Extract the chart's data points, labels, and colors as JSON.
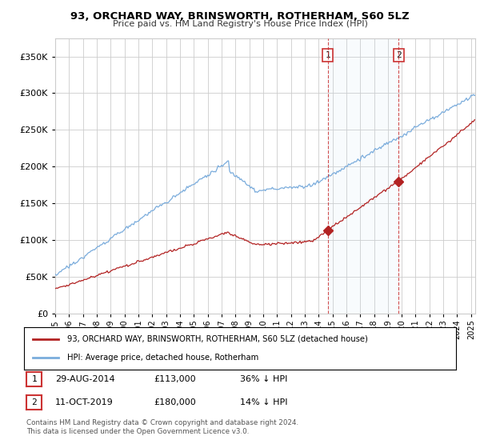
{
  "title": "93, ORCHARD WAY, BRINSWORTH, ROTHERHAM, S60 5LZ",
  "subtitle": "Price paid vs. HM Land Registry's House Price Index (HPI)",
  "legend_line1": "93, ORCHARD WAY, BRINSWORTH, ROTHERHAM, S60 5LZ (detached house)",
  "legend_line2": "HPI: Average price, detached house, Rotherham",
  "annotation1": {
    "label": "1",
    "date": "29-AUG-2014",
    "price": "£113,000",
    "pct": "36% ↓ HPI",
    "x_year": 2014.66,
    "y_val": 113000
  },
  "annotation2": {
    "label": "2",
    "date": "11-OCT-2019",
    "price": "£180,000",
    "pct": "14% ↓ HPI",
    "x_year": 2019.78,
    "y_val": 180000
  },
  "footer1": "Contains HM Land Registry data © Crown copyright and database right 2024.",
  "footer2": "This data is licensed under the Open Government Licence v3.0.",
  "hpi_color": "#7aacdc",
  "price_color": "#b22222",
  "vline_color": "#cc3333",
  "background_color": "#ffffff",
  "grid_color": "#cccccc",
  "ylim": [
    0,
    375000
  ],
  "xlim_start": 1995.0,
  "xlim_end": 2025.3
}
